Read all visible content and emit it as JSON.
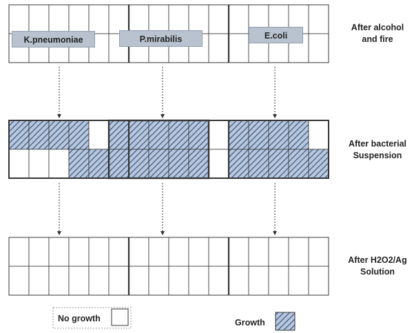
{
  "organisms": [
    "K.pneumoniae",
    "P.mirabilis",
    "E.coli"
  ],
  "stages": [
    {
      "label_line1": "After alcohol",
      "label_line2": "and  fire",
      "growth": [
        [
          0,
          0,
          0,
          0,
          0,
          0,
          0,
          0,
          0,
          0,
          0,
          0,
          0,
          0,
          0,
          0
        ],
        [
          0,
          0,
          0,
          0,
          0,
          0,
          0,
          0,
          0,
          0,
          0,
          0,
          0,
          0,
          0,
          0
        ]
      ]
    },
    {
      "label_line1": "After bacterial",
      "label_line2": "Suspension",
      "growth": [
        [
          1,
          1,
          1,
          1,
          0,
          1,
          1,
          1,
          1,
          1,
          0,
          1,
          1,
          1,
          1,
          0
        ],
        [
          0,
          0,
          0,
          1,
          1,
          1,
          1,
          1,
          1,
          1,
          0,
          1,
          1,
          1,
          1,
          1
        ]
      ]
    },
    {
      "label_line1": "After H2O2/Ag",
      "label_line2": "Solution",
      "growth": [
        [
          0,
          0,
          0,
          0,
          0,
          0,
          0,
          0,
          0,
          0,
          0,
          0,
          0,
          0,
          0,
          0
        ],
        [
          0,
          0,
          0,
          0,
          0,
          0,
          0,
          0,
          0,
          0,
          0,
          0,
          0,
          0,
          0,
          0
        ]
      ]
    }
  ],
  "legend": {
    "no_growth": "No growth",
    "growth": "Growth"
  },
  "colors": {
    "grid_line": "#333333",
    "hatch_fill": "#b8c7dc",
    "hatch_stroke": "#2d4a78",
    "label_box": "#b9c3cf"
  }
}
